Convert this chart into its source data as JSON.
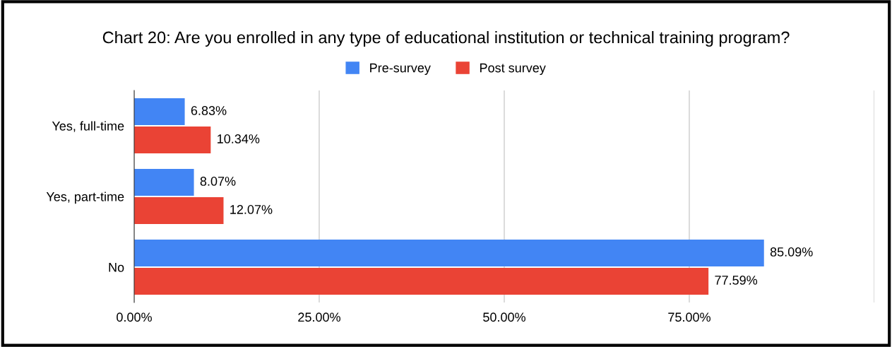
{
  "chart_data": {
    "type": "bar",
    "orientation": "horizontal",
    "title": "Chart 20: Are you enrolled in any type of educational institution or technical training program?",
    "categories": [
      "Yes, full-time",
      "Yes, part-time",
      "No"
    ],
    "series": [
      {
        "name": "Pre-survey",
        "color": "#4285f4",
        "values": [
          6.83,
          8.07,
          85.09
        ],
        "value_labels": [
          "6.83%",
          "8.07%",
          "85.09%"
        ]
      },
      {
        "name": "Post survey",
        "color": "#ea4335",
        "values": [
          10.34,
          12.07,
          77.59
        ],
        "value_labels": [
          "10.34%",
          "12.07%",
          "77.59%"
        ]
      }
    ],
    "xlim": [
      0,
      100
    ],
    "xticks": [
      {
        "value": 0,
        "label": "0.00%"
      },
      {
        "value": 25,
        "label": "25.00%"
      },
      {
        "value": 50,
        "label": "50.00%"
      },
      {
        "value": 75,
        "label": "75.00%"
      },
      {
        "value": 100,
        "label": null
      }
    ],
    "grid": "x",
    "legend": "top"
  }
}
